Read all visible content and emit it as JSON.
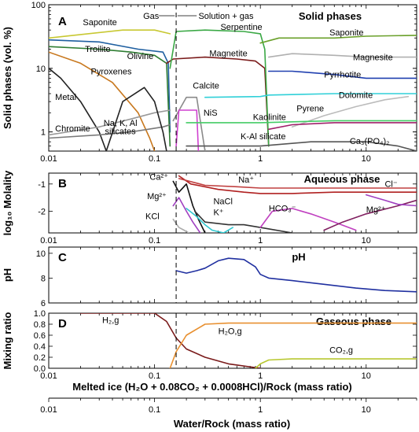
{
  "colors": {
    "saponite": "#c8c832",
    "troilite": "#1f5fa0",
    "olivine": "#2e7d32",
    "pyroxenes": "#c8781e",
    "metal": "#222222",
    "chromite": "#7a7a7a",
    "naksil": "#999999",
    "magnetite": "#7a1a1a",
    "serpentine": "#3aa845",
    "calcite": "#8a8a8a",
    "nis": "#d040d0",
    "saponite2": "#6aa02a",
    "magnesite": "#b0b0b0",
    "pyrrhotite": "#2040b0",
    "dolomite": "#30d0d8",
    "pyrene": "#bbbbbb",
    "kaolinite": "#a0206a",
    "kalsil": "#44cc66",
    "ca3po42": "#555555",
    "na": "#b02020",
    "cl": "#c04040",
    "ca": "#111111",
    "mg": "#a040c0",
    "kcl": "#aaaaaa",
    "nacl": "#30c8d0",
    "kplus": "#333333",
    "hco3": "#c040c0",
    "mg2": "#802060",
    "ph": "#2030a0",
    "h2g": "#7a1a1a",
    "h2og": "#e89030",
    "co2g": "#b8c830"
  },
  "figure": {
    "xlabel_inner": "Melted ice (H₂O + 0.08CO₂ + 0.0008HCl)/Rock (mass ratio)",
    "xlabel_bottom": "Water/Rock (mass ratio)",
    "xticks_inner": [
      "0.01",
      "0.1",
      "1",
      "10"
    ],
    "xticks_bottom": [
      "0.01",
      "0.1",
      "1",
      "10"
    ],
    "dashed_line_x": 0.16
  },
  "chart_data": [
    {
      "panel": "A",
      "type": "line",
      "title": "Solid phases",
      "ylabel": "Solid phases (vol. %)",
      "yscale": "log",
      "ylim": [
        0.5,
        100
      ],
      "xlim": [
        0.01,
        30
      ],
      "xscale": "log",
      "yticks": [
        "100",
        "10",
        "1"
      ],
      "annotations": [
        "Gas",
        "Solution + gas"
      ],
      "labels": [
        "Saponite",
        "Troilite",
        "Olivine",
        "Pyroxenes",
        "Metal",
        "Chromite",
        "Na, K, Al",
        "silicates",
        "Serpentine",
        "Magnetite",
        "Calcite",
        "NiS",
        "Saponite",
        "Magnesite",
        "Pyrrhotite",
        "Dolomite",
        "Pyrene",
        "Kaolinite",
        "K-Al silicate",
        "Ca₃(PO₄)₂"
      ],
      "series": [
        {
          "key": "saponite",
          "x": [
            0.01,
            0.02,
            0.05,
            0.1,
            0.14
          ],
          "y": [
            30,
            34,
            40,
            40,
            35
          ]
        },
        {
          "key": "troilite",
          "x": [
            0.01,
            0.03,
            0.07,
            0.12,
            0.135,
            0.14
          ],
          "y": [
            28,
            26,
            20,
            18,
            12,
            1
          ]
        },
        {
          "key": "olivine",
          "x": [
            0.01,
            0.03,
            0.06,
            0.1,
            0.13,
            0.14
          ],
          "y": [
            22,
            20,
            18,
            16,
            12,
            0.6
          ]
        },
        {
          "key": "pyroxenes",
          "x": [
            0.01,
            0.02,
            0.04,
            0.07,
            0.09,
            0.1
          ],
          "y": [
            18,
            12,
            6,
            2,
            0.8,
            0.5
          ]
        },
        {
          "key": "metal",
          "x": [
            0.01,
            0.013,
            0.02,
            0.03,
            0.035
          ],
          "y": [
            10,
            7,
            3,
            1,
            0.5
          ]
        },
        {
          "key": "chromite",
          "x": [
            0.01,
            0.03,
            0.06,
            0.12,
            0.14
          ],
          "y": [
            0.8,
            0.9,
            1.0,
            1.2,
            1.3
          ]
        },
        {
          "key": "naksil",
          "x": [
            0.01,
            0.03,
            0.06,
            0.1,
            0.14
          ],
          "y": [
            0.9,
            1.2,
            1.6,
            2.0,
            2.2
          ]
        },
        {
          "key": "metal2",
          "x": [
            0.035,
            0.05,
            0.08,
            0.1,
            0.12,
            0.13
          ],
          "y": [
            0.5,
            3,
            5,
            3,
            1,
            0.5
          ]
        },
        {
          "key": "magnetite",
          "x": [
            0.13,
            0.15,
            0.3,
            0.6,
            0.9,
            1.1,
            1.2
          ],
          "y": [
            12,
            14,
            15,
            14,
            13,
            10,
            0.6
          ]
        },
        {
          "key": "serpentine",
          "x": [
            0.14,
            0.16,
            0.3,
            0.7,
            1.0,
            1.1,
            1.2
          ],
          "y": [
            10,
            38,
            40,
            38,
            35,
            20,
            0.6
          ]
        },
        {
          "key": "calcite",
          "x": [
            0.15,
            0.2,
            0.25,
            0.3
          ],
          "y": [
            1.5,
            3.5,
            3.5,
            0.5
          ]
        },
        {
          "key": "nis",
          "x": [
            0.16,
            0.17,
            0.25,
            0.26
          ],
          "y": [
            0.6,
            2.2,
            2.2,
            0.5
          ]
        },
        {
          "key": "saponite2",
          "x": [
            1.0,
            1.5,
            5,
            10,
            30
          ],
          "y": [
            25,
            30,
            30,
            32,
            33
          ]
        },
        {
          "key": "magnesite",
          "x": [
            1.2,
            2,
            5,
            10,
            30
          ],
          "y": [
            15,
            17,
            16,
            15,
            15
          ]
        },
        {
          "key": "pyrrhotite",
          "x": [
            1.2,
            2,
            5,
            10,
            30
          ],
          "y": [
            9,
            9,
            8,
            7,
            7
          ]
        },
        {
          "key": "dolomite",
          "x": [
            0.3,
            1.0,
            1.2,
            5,
            10,
            30
          ],
          "y": [
            3.5,
            3.6,
            3.8,
            4,
            4,
            4
          ]
        },
        {
          "key": "pyrene",
          "x": [
            2,
            4,
            8,
            15,
            25
          ],
          "y": [
            1.2,
            1.8,
            2.5,
            3.2,
            3.6
          ]
        },
        {
          "key": "kaolinite",
          "x": [
            1.2,
            2,
            5,
            10,
            30
          ],
          "y": [
            1.1,
            1.3,
            1.4,
            1.4,
            1.4
          ]
        },
        {
          "key": "kalsil",
          "x": [
            0.2,
            1.0,
            5,
            30
          ],
          "y": [
            1.4,
            1.4,
            1.5,
            1.5
          ]
        },
        {
          "key": "ca3po42",
          "x": [
            0.2,
            1.0,
            3,
            10,
            20,
            30
          ],
          "y": [
            0.6,
            0.6,
            0.7,
            0.7,
            0.6,
            0.5
          ]
        }
      ]
    },
    {
      "panel": "B",
      "type": "line",
      "title": "Aqueous phase",
      "ylabel": "log₁₀ Molality",
      "ylim": [
        -2.8,
        -0.6
      ],
      "xlim": [
        0.01,
        30
      ],
      "xscale": "log",
      "yticks": [
        "-1",
        "-2"
      ],
      "labels": [
        "Na⁺",
        "Cl⁻",
        "Ca²⁺",
        "Mg²⁺",
        "KCl",
        "NaCl",
        "K⁺",
        "HCO₃⁻",
        "Mg²⁺"
      ],
      "series": [
        {
          "key": "na",
          "x": [
            0.17,
            0.22,
            0.4,
            0.7,
            1.0,
            2,
            5,
            10,
            30
          ],
          "y": [
            -0.7,
            -1.0,
            -1.2,
            -1.3,
            -1.35,
            -1.35,
            -1.3,
            -1.3,
            -1.3
          ]
        },
        {
          "key": "cl",
          "x": [
            0.17,
            0.3,
            0.6,
            1.0,
            3,
            10,
            30
          ],
          "y": [
            -0.8,
            -1.05,
            -1.1,
            -1.15,
            -1.15,
            -1.15,
            -1.15
          ]
        },
        {
          "key": "ca",
          "x": [
            0.15,
            0.17,
            0.2,
            0.23,
            0.26,
            0.3
          ],
          "y": [
            -0.9,
            -1.3,
            -1.0,
            -1.8,
            -2.3,
            -2.8
          ]
        },
        {
          "key": "mg",
          "x": [
            0.15,
            0.17,
            0.2,
            0.23,
            0.27
          ],
          "y": [
            -1.8,
            -1.5,
            -2.0,
            -2.4,
            -2.8
          ]
        },
        {
          "key": "kcl",
          "x": [
            0.15,
            0.17,
            0.19,
            0.21
          ],
          "y": [
            -2.3,
            -2.6,
            -2.7,
            -2.8
          ]
        },
        {
          "key": "nacl",
          "x": [
            0.2,
            0.25,
            0.3,
            0.35,
            0.45,
            0.55
          ],
          "y": [
            -1.9,
            -2.2,
            -2.5,
            -2.7,
            -2.8,
            -2.6
          ]
        },
        {
          "key": "kplus",
          "x": [
            0.24,
            0.3,
            0.5,
            0.7,
            1.0,
            2
          ],
          "y": [
            -2.0,
            -2.4,
            -2.5,
            -2.5,
            -2.6,
            -2.8
          ]
        },
        {
          "key": "hco3",
          "x": [
            1.0,
            1.3,
            2,
            3,
            5,
            8
          ],
          "y": [
            -2.6,
            -2.0,
            -1.9,
            -2.1,
            -2.4,
            -2.7
          ]
        },
        {
          "key": "mg2",
          "x": [
            4,
            6,
            10,
            20,
            30
          ],
          "y": [
            -2.7,
            -2.4,
            -2.1,
            -1.8,
            -1.6
          ]
        },
        {
          "key": "mg2b",
          "x": [
            10,
            15,
            20,
            30
          ],
          "y": [
            -1.4,
            -1.6,
            -1.75,
            -1.8
          ]
        }
      ]
    },
    {
      "panel": "C",
      "type": "line",
      "title": "pH",
      "ylabel": "pH",
      "ylim": [
        6,
        10.5
      ],
      "xlim": [
        0.01,
        30
      ],
      "xscale": "log",
      "yticks": [
        "10",
        "8",
        "6"
      ],
      "series": [
        {
          "key": "ph",
          "x": [
            0.16,
            0.2,
            0.25,
            0.3,
            0.4,
            0.5,
            0.7,
            0.9,
            1.0,
            1.2,
            2,
            4,
            8,
            15,
            30
          ],
          "y": [
            8.6,
            8.4,
            8.6,
            8.8,
            9.4,
            9.6,
            9.5,
            8.9,
            8.3,
            8.0,
            7.8,
            7.5,
            7.2,
            7.0,
            6.9
          ]
        }
      ]
    },
    {
      "panel": "D",
      "type": "line",
      "title": "Gaseous phase",
      "ylabel": "Mixing ratio",
      "ylim": [
        0,
        1
      ],
      "xlim": [
        0.01,
        30
      ],
      "xscale": "log",
      "yticks": [
        "0.0",
        "0.2",
        "0.4",
        "0.6",
        "0.8",
        "1.0"
      ],
      "labels": [
        "H₂,g",
        "H₂O,g",
        "CO₂,g"
      ],
      "series": [
        {
          "key": "h2g",
          "x": [
            0.02,
            0.05,
            0.1,
            0.13,
            0.16,
            0.2,
            0.3,
            0.5,
            1.0
          ],
          "y": [
            1.0,
            1.0,
            1.0,
            0.85,
            0.55,
            0.35,
            0.2,
            0.08,
            0.0
          ]
        },
        {
          "key": "h2og",
          "x": [
            0.14,
            0.16,
            0.2,
            0.3,
            0.5,
            1.0,
            3,
            10,
            30
          ],
          "y": [
            0.0,
            0.3,
            0.6,
            0.8,
            0.82,
            0.82,
            0.82,
            0.82,
            0.82
          ]
        },
        {
          "key": "co2g",
          "x": [
            0.9,
            1.0,
            1.2,
            2,
            5,
            10,
            30
          ],
          "y": [
            0.0,
            0.08,
            0.15,
            0.17,
            0.17,
            0.17,
            0.17
          ]
        }
      ]
    }
  ]
}
